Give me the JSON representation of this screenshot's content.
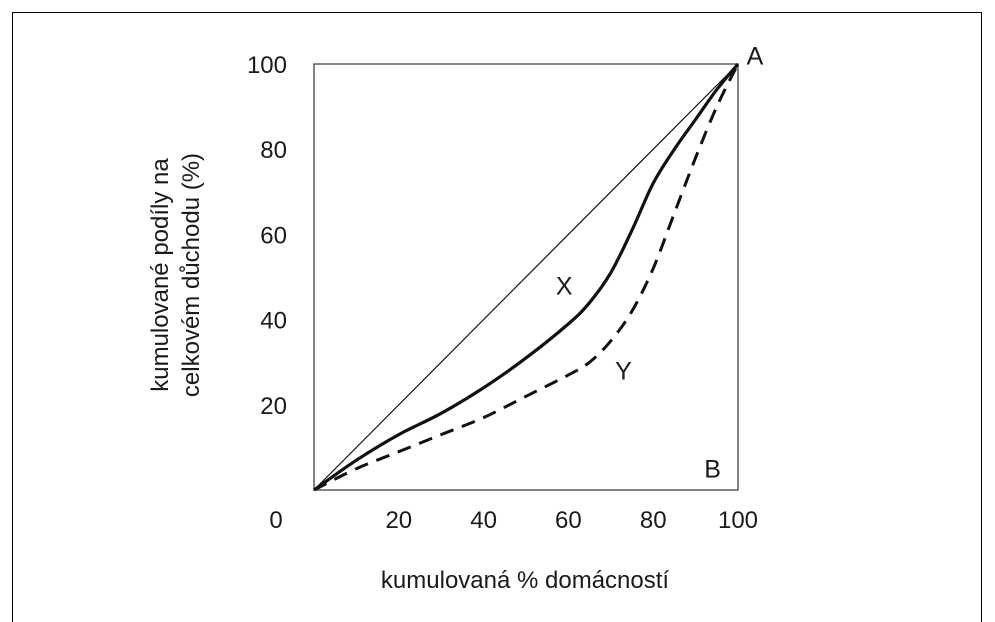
{
  "chart_data": {
    "type": "line",
    "title": "",
    "xlabel": "kumulovaná % domácností",
    "ylabel_lines": [
      "kumulované podíly na",
      "celkovém důchodu (%)"
    ],
    "xlim": [
      0,
      100
    ],
    "ylim": [
      0,
      100
    ],
    "x_ticks": [
      "0",
      "20",
      "40",
      "60",
      "80",
      "100"
    ],
    "y_ticks": [
      "20",
      "40",
      "60",
      "80",
      "100"
    ],
    "grid": false,
    "annotations": [
      {
        "text": "A",
        "x": 104,
        "y": 102
      },
      {
        "text": "B",
        "x": 94,
        "y": 5
      },
      {
        "text": "X",
        "x": 59,
        "y": 48
      },
      {
        "text": "Y",
        "x": 73,
        "y": 28
      }
    ],
    "series": [
      {
        "name": "",
        "style": "thin-solid",
        "x": [
          0,
          100
        ],
        "y": [
          0,
          100
        ]
      },
      {
        "name": "X",
        "style": "thick-solid",
        "x": [
          0,
          10,
          20,
          30,
          40,
          50,
          60,
          65,
          70,
          75,
          80,
          85,
          90,
          95,
          100
        ],
        "y": [
          0,
          7,
          13,
          18,
          24,
          31,
          39,
          44,
          51,
          61,
          72,
          80,
          87,
          94,
          100
        ]
      },
      {
        "name": "Y",
        "style": "dashed",
        "x": [
          0,
          10,
          20,
          30,
          40,
          50,
          60,
          65,
          70,
          75,
          80,
          85,
          90,
          95,
          100
        ],
        "y": [
          0,
          5,
          9,
          13,
          17,
          22,
          27,
          30,
          35,
          42,
          52,
          65,
          78,
          90,
          100
        ]
      }
    ]
  }
}
